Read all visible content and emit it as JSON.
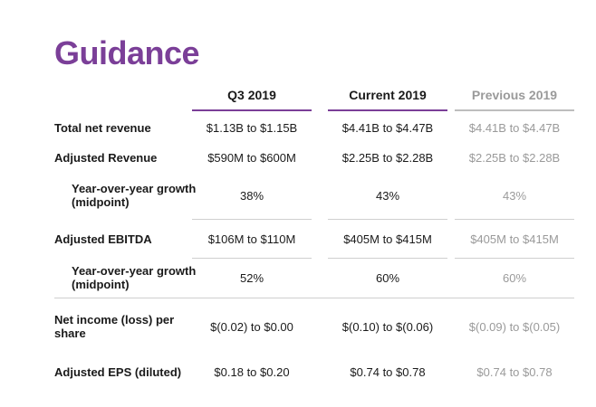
{
  "title": "Guidance",
  "columns": [
    "Q3 2019",
    "Current 2019",
    "Previous 2019"
  ],
  "rows": [
    {
      "label": "Total net revenue",
      "values": [
        "$1.13B to $1.15B",
        "$4.41B to $4.47B",
        "$4.41B to $4.47B"
      ]
    },
    {
      "label": "Adjusted Revenue",
      "values": [
        "$590M to $600M",
        "$2.25B to $2.28B",
        "$2.25B to $2.28B"
      ]
    },
    {
      "label": "Year-over-year growth (midpoint)",
      "values": [
        "38%",
        "43%",
        "43%"
      ]
    },
    {
      "label": "Adjusted EBITDA",
      "values": [
        "$106M to $110M",
        "$405M to $415M",
        "$405M to $415M"
      ]
    },
    {
      "label": "Year-over-year growth (midpoint)",
      "values": [
        "52%",
        "60%",
        "60%"
      ]
    },
    {
      "label": "Net income (loss) per share",
      "values": [
        "$(0.02) to $0.00",
        "$(0.10) to $(0.06)",
        "$(0.09) to $(0.05)"
      ]
    },
    {
      "label": "Adjusted EPS (diluted)",
      "values": [
        "$0.18 to $0.20",
        "$0.74 to $0.78",
        "$0.74 to $0.78"
      ]
    }
  ]
}
